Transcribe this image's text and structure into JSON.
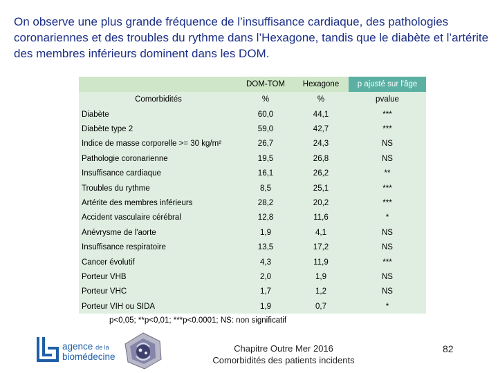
{
  "intro_text": "On observe une plus grande fréquence de l’insuffisance cardiaque, des pathologies coronariennes et des troubles du rythme dans l’Hexagone, tandis que le diabète et l’artérite des membres inférieurs dominent dans les DOM.",
  "table": {
    "headers": [
      "DOM-TOM",
      "Hexagone",
      "p ajusté sur l'âge"
    ],
    "comorbidities_label": "Comorbidités",
    "units": [
      "%",
      "%",
      "pvalue"
    ],
    "rows": [
      {
        "label": "Diabète",
        "dom": "60,0",
        "hex": "44,1",
        "p": "***"
      },
      {
        "label": "Diabète type 2",
        "dom": "59,0",
        "hex": "42,7",
        "p": "***"
      },
      {
        "label": "Indice de masse corporelle >= 30 kg/m²",
        "dom": "26,7",
        "hex": "24,3",
        "p": "NS"
      },
      {
        "label": "Pathologie coronarienne",
        "dom": "19,5",
        "hex": "26,8",
        "p": "NS"
      },
      {
        "label": "Insuffisance cardiaque",
        "dom": "16,1",
        "hex": "26,2",
        "p": "**"
      },
      {
        "label": "Troubles du rythme",
        "dom": "8,5",
        "hex": "25,1",
        "p": "***"
      },
      {
        "label": "Artérite des membres inférieurs",
        "dom": "28,2",
        "hex": "20,2",
        "p": "***"
      },
      {
        "label": "Accident vasculaire cérébral",
        "dom": "12,8",
        "hex": "11,6",
        "p": "*"
      },
      {
        "label": "Anévrysme de l'aorte",
        "dom": "1,9",
        "hex": "4,1",
        "p": "NS"
      },
      {
        "label": "Insuffisance respiratoire",
        "dom": "13,5",
        "hex": "17,2",
        "p": "NS"
      },
      {
        "label": "Cancer évolutif",
        "dom": "4,3",
        "hex": "11,9",
        "p": "***"
      },
      {
        "label": "Porteur VHB",
        "dom": "2,0",
        "hex": "1,9",
        "p": "NS"
      },
      {
        "label": "Porteur VHC",
        "dom": "1,7",
        "hex": "1,2",
        "p": "NS"
      },
      {
        "label": "Porteur VIH ou SIDA",
        "dom": "1,9",
        "hex": "0,7",
        "p": "*"
      }
    ]
  },
  "significance_note": "p<0,05; **p<0,01; ***p<0.0001; NS: non significatif",
  "logo": {
    "line1_a": "agence",
    "line1_b": "de la",
    "line2": "biomédecine"
  },
  "footer": {
    "line1": "Chapitre Outre Mer 2016",
    "line2": "Comorbidités des patients incidents"
  },
  "page_number": "82",
  "colors": {
    "intro": "#1b2f86",
    "header_teal": "#5bb0a3",
    "header_green": "#cfe6c8",
    "body_green": "#dfeee0",
    "logo_blue": "#1f5fa8"
  }
}
